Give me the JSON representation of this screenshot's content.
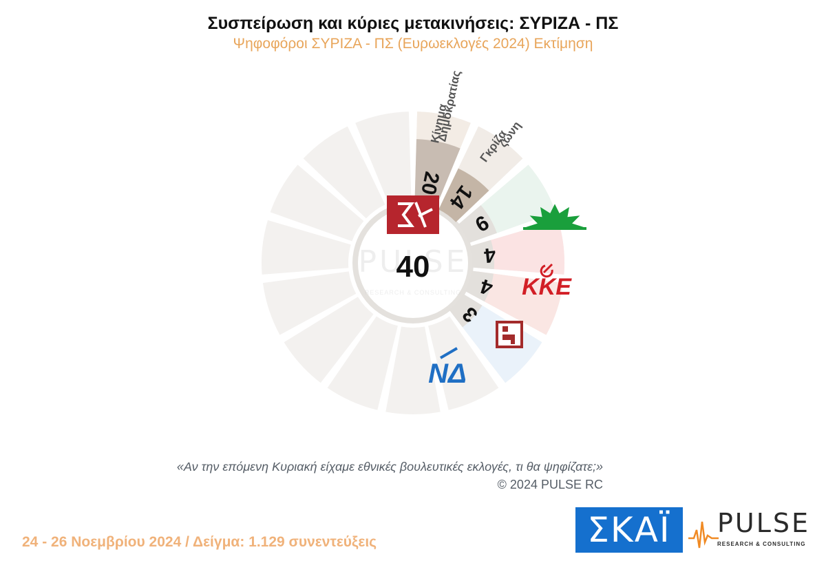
{
  "header": {
    "title": "Συσπείρωση και κύριες μετακινήσεις:  ΣΥΡΙΖΑ - ΠΣ",
    "subtitle": "Ψηφοφόροι ΣΥΡΙΖΑ - ΠΣ  (Ευρωεκλογές 2024)  Εκτίμηση"
  },
  "chart_data": {
    "type": "radial_bar",
    "center": {
      "party": "ΣΥΡΙΖΑ - ΠΣ",
      "value": 40,
      "logo": "syriza-logo"
    },
    "series": [
      {
        "label_lines": [
          "Κίνημα",
          "Δημοκρατίας"
        ],
        "value": 20,
        "color": "#c8bcb2",
        "light": "#f3ece5"
      },
      {
        "label_lines": [
          "Γκρίζα",
          "ζώνη"
        ],
        "value": 14,
        "color": "#c4b5a6",
        "light": "#f1ece7"
      },
      {
        "logo": "pasok-logo",
        "value": 9,
        "color": "#e3e0dc",
        "light": "#eaf4ee"
      },
      {
        "logo": "kke-logo",
        "value": 4,
        "color": "#e3e0dc",
        "light": "#fbe3e3"
      },
      {
        "logo": "plefsi-logo",
        "value": 4,
        "color": "#e3e0dc",
        "light": "#fae6e3"
      },
      {
        "logo": "nd-logo",
        "value": 3,
        "color": "#e3e0dc",
        "light": "#eaf2fa"
      }
    ],
    "kke_text": "ΚΚΕ",
    "nd_text": "ΝΔ"
  },
  "watermark": {
    "word": "PULSE",
    "sub": "RESEARCH & CONSULTING"
  },
  "question": "«Αν την επόμενη Κυριακή είχαμε εθνικές βουλευτικές εκλογές, τι θα ψηφίζατε;»",
  "copyright": "©  2024  PULSE RC",
  "footer": "24 - 26 Νοεμβρίου 2024  /  Δείγμα:  1.129 συνεντεύξεις",
  "logos": {
    "skai": "ΣΚΑΪ",
    "pulse_word": "PULSE",
    "pulse_sub": "RESEARCH & CONSULTING"
  }
}
